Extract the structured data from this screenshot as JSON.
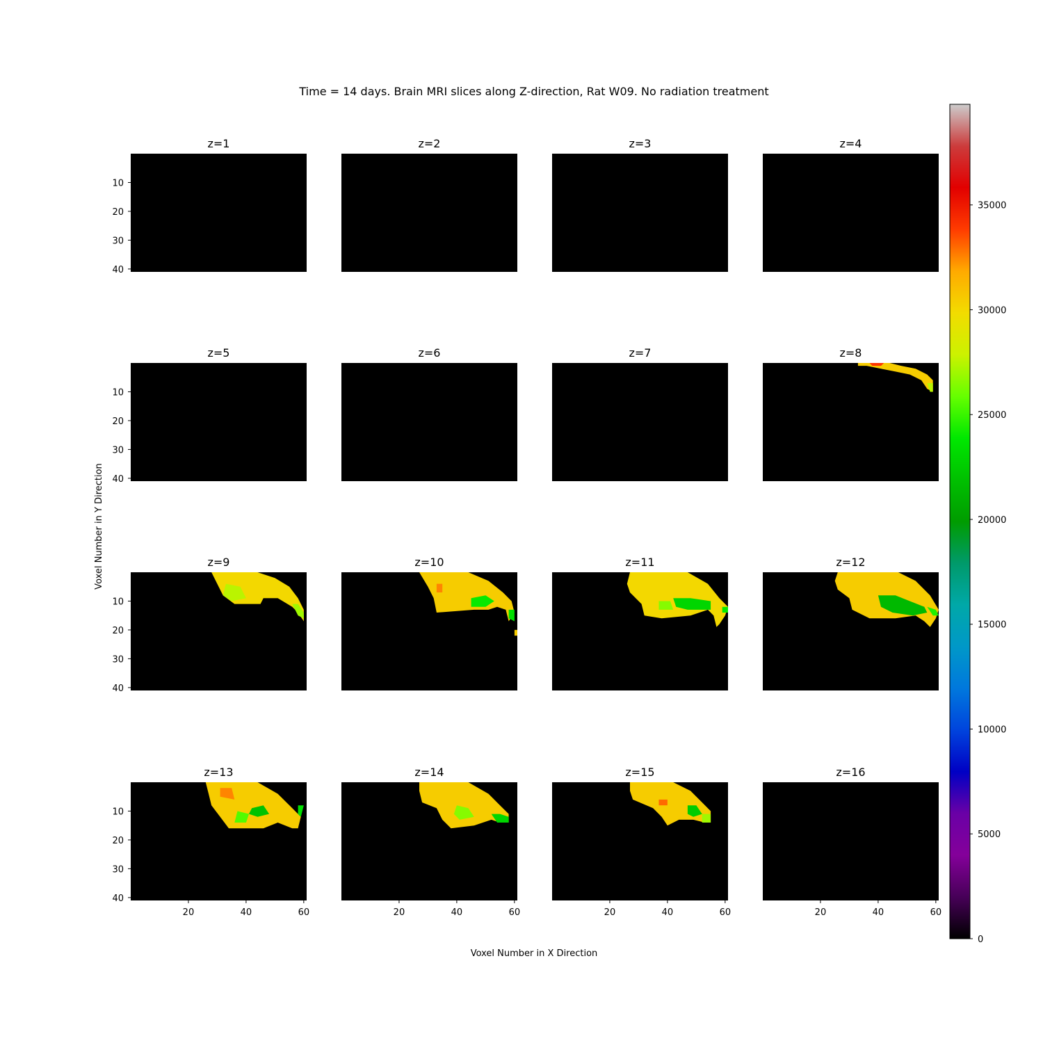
{
  "chart_data": {
    "type": "heatmap",
    "title": "Time = 14 days. Brain MRI slices along Z-direction, Rat W09. No radiation treatment",
    "xlabel": "Voxel Number in X Direction",
    "ylabel": "Voxel Number in Y Direction",
    "grid": false,
    "xlim": [
      0,
      61
    ],
    "ylim": [
      41,
      0
    ],
    "x_ticks": [
      20,
      40,
      60
    ],
    "y_ticks": [
      10,
      20,
      30,
      40
    ],
    "colormap": "nipy_spectral",
    "colorbar": {
      "range": [
        0,
        39800
      ],
      "ticks": [
        0,
        5000,
        10000,
        15000,
        20000,
        25000,
        30000,
        35000
      ]
    },
    "panels": [
      {
        "title": "z=1",
        "regions": []
      },
      {
        "title": "z=2",
        "regions": []
      },
      {
        "title": "z=3",
        "regions": []
      },
      {
        "title": "z=4",
        "regions": []
      },
      {
        "title": "z=5",
        "regions": []
      },
      {
        "title": "z=6",
        "regions": []
      },
      {
        "title": "z=7",
        "regions": []
      },
      {
        "title": "z=8",
        "regions": [
          {
            "value": 30500,
            "points": [
              [
                33,
                0
              ],
              [
                44,
                0
              ],
              [
                48,
                1
              ],
              [
                53,
                2
              ],
              [
                57,
                4
              ],
              [
                59,
                6
              ],
              [
                59,
                10
              ],
              [
                57,
                9
              ],
              [
                55,
                6
              ],
              [
                51,
                4
              ],
              [
                46,
                3
              ],
              [
                41,
                2
              ],
              [
                36,
                1
              ],
              [
                33,
                1
              ]
            ]
          },
          {
            "value": 34000,
            "points": [
              [
                37,
                0
              ],
              [
                42,
                0
              ],
              [
                41,
                1
              ],
              [
                38,
                1
              ]
            ]
          },
          {
            "value": 27500,
            "points": [
              [
                57,
                7
              ],
              [
                59,
                7
              ],
              [
                59,
                10
              ],
              [
                58,
                10
              ]
            ]
          }
        ]
      },
      {
        "title": "z=9",
        "regions": [
          {
            "value": 30000,
            "points": [
              [
                28,
                0
              ],
              [
                44,
                0
              ],
              [
                50,
                2
              ],
              [
                55,
                5
              ],
              [
                58,
                9
              ],
              [
                60,
                13
              ],
              [
                60,
                17
              ],
              [
                58,
                14
              ],
              [
                56,
                12
              ],
              [
                51,
                9
              ],
              [
                46,
                9
              ],
              [
                45,
                11
              ],
              [
                36,
                11
              ],
              [
                32,
                8
              ],
              [
                30,
                4
              ]
            ]
          },
          {
            "value": 27500,
            "points": [
              [
                33,
                4
              ],
              [
                38,
                5
              ],
              [
                40,
                9
              ],
              [
                35,
                10
              ],
              [
                32,
                8
              ]
            ]
          },
          {
            "value": 27000,
            "points": [
              [
                56,
                11
              ],
              [
                58,
                11
              ],
              [
                60,
                14
              ],
              [
                60,
                16
              ],
              [
                58,
                15
              ]
            ]
          }
        ]
      },
      {
        "title": "z=10",
        "regions": [
          {
            "value": 30500,
            "points": [
              [
                27,
                0
              ],
              [
                44,
                0
              ],
              [
                51,
                3
              ],
              [
                56,
                7
              ],
              [
                59,
                10
              ],
              [
                60,
                14
              ],
              [
                58,
                17
              ],
              [
                57,
                13
              ],
              [
                54,
                12
              ],
              [
                51,
                13
              ],
              [
                46,
                13
              ],
              [
                33,
                14
              ],
              [
                32,
                9
              ],
              [
                30,
                5
              ]
            ]
          },
          {
            "value": 32500,
            "points": [
              [
                33,
                4
              ],
              [
                35,
                4
              ],
              [
                35,
                7
              ],
              [
                33,
                7
              ]
            ]
          },
          {
            "value": 24000,
            "points": [
              [
                45,
                9
              ],
              [
                50,
                8
              ],
              [
                53,
                10
              ],
              [
                50,
                12
              ],
              [
                45,
                12
              ]
            ]
          },
          {
            "value": 23500,
            "points": [
              [
                58,
                13
              ],
              [
                60,
                13
              ],
              [
                60,
                17
              ],
              [
                58,
                16
              ]
            ]
          },
          {
            "value": 30500,
            "points": [
              [
                60,
                20
              ],
              [
                61,
                20
              ],
              [
                61,
                22
              ],
              [
                60,
                22
              ]
            ]
          }
        ]
      },
      {
        "title": "z=11",
        "regions": [
          {
            "value": 30000,
            "points": [
              [
                27,
                0
              ],
              [
                47,
                0
              ],
              [
                54,
                4
              ],
              [
                58,
                9
              ],
              [
                61,
                12
              ],
              [
                60,
                15
              ],
              [
                58,
                18
              ],
              [
                57,
                19
              ],
              [
                56,
                15
              ],
              [
                54,
                13
              ],
              [
                48,
                15
              ],
              [
                38,
                16
              ],
              [
                32,
                15
              ],
              [
                31,
                11
              ],
              [
                27,
                7
              ],
              [
                26,
                4
              ]
            ]
          },
          {
            "value": 23000,
            "points": [
              [
                42,
                9
              ],
              [
                48,
                9
              ],
              [
                55,
                10
              ],
              [
                55,
                13
              ],
              [
                47,
                13
              ],
              [
                43,
                12
              ]
            ]
          },
          {
            "value": 26500,
            "points": [
              [
                37,
                10
              ],
              [
                41,
                10
              ],
              [
                42,
                13
              ],
              [
                37,
                13
              ]
            ]
          },
          {
            "value": 24000,
            "points": [
              [
                59,
                12
              ],
              [
                61,
                12
              ],
              [
                61,
                14
              ],
              [
                59,
                14
              ]
            ]
          }
        ]
      },
      {
        "title": "z=12",
        "regions": [
          {
            "value": 30500,
            "points": [
              [
                26,
                0
              ],
              [
                47,
                0
              ],
              [
                53,
                3
              ],
              [
                58,
                8
              ],
              [
                61,
                13
              ],
              [
                60,
                16
              ],
              [
                58,
                19
              ],
              [
                56,
                17
              ],
              [
                53,
                15
              ],
              [
                46,
                16
              ],
              [
                37,
                16
              ],
              [
                31,
                13
              ],
              [
                30,
                9
              ],
              [
                26,
                6
              ],
              [
                25,
                3
              ]
            ]
          },
          {
            "value": 21500,
            "points": [
              [
                40,
                8
              ],
              [
                46,
                8
              ],
              [
                51,
                10
              ],
              [
                56,
                12
              ],
              [
                57,
                14
              ],
              [
                52,
                15
              ],
              [
                45,
                14
              ],
              [
                41,
                12
              ]
            ]
          },
          {
            "value": 24500,
            "points": [
              [
                57,
                12
              ],
              [
                60,
                13
              ],
              [
                61,
                15
              ],
              [
                59,
                15
              ]
            ]
          }
        ]
      },
      {
        "title": "z=13",
        "regions": [
          {
            "value": 30500,
            "points": [
              [
                26,
                0
              ],
              [
                44,
                0
              ],
              [
                51,
                4
              ],
              [
                56,
                9
              ],
              [
                59,
                12
              ],
              [
                58,
                16
              ],
              [
                56,
                16
              ],
              [
                51,
                14
              ],
              [
                46,
                16
              ],
              [
                34,
                16
              ],
              [
                31,
                12
              ],
              [
                28,
                8
              ],
              [
                27,
                4
              ]
            ]
          },
          {
            "value": 32500,
            "points": [
              [
                31,
                2
              ],
              [
                35,
                2
              ],
              [
                36,
                6
              ],
              [
                31,
                5
              ]
            ]
          },
          {
            "value": 22000,
            "points": [
              [
                42,
                9
              ],
              [
                46,
                8
              ],
              [
                48,
                11
              ],
              [
                44,
                12
              ],
              [
                41,
                11
              ]
            ]
          },
          {
            "value": 25500,
            "points": [
              [
                37,
                10
              ],
              [
                41,
                11
              ],
              [
                40,
                14
              ],
              [
                36,
                14
              ]
            ]
          },
          {
            "value": 23500,
            "points": [
              [
                58,
                8
              ],
              [
                60,
                8
              ],
              [
                59,
                12
              ],
              [
                58,
                11
              ]
            ]
          }
        ]
      },
      {
        "title": "z=14",
        "regions": [
          {
            "value": 30500,
            "points": [
              [
                27,
                0
              ],
              [
                44,
                0
              ],
              [
                51,
                4
              ],
              [
                55,
                8
              ],
              [
                58,
                11
              ],
              [
                58,
                14
              ],
              [
                55,
                14
              ],
              [
                52,
                13
              ],
              [
                46,
                15
              ],
              [
                38,
                16
              ],
              [
                35,
                13
              ],
              [
                33,
                9
              ],
              [
                28,
                7
              ],
              [
                27,
                3
              ]
            ]
          },
          {
            "value": 26500,
            "points": [
              [
                40,
                8
              ],
              [
                44,
                9
              ],
              [
                46,
                12
              ],
              [
                41,
                13
              ],
              [
                39,
                11
              ]
            ]
          },
          {
            "value": 23000,
            "points": [
              [
                52,
                11
              ],
              [
                55,
                11
              ],
              [
                58,
                12
              ],
              [
                58,
                14
              ],
              [
                54,
                14
              ]
            ]
          }
        ]
      },
      {
        "title": "z=15",
        "regions": [
          {
            "value": 30500,
            "points": [
              [
                27,
                0
              ],
              [
                42,
                0
              ],
              [
                48,
                3
              ],
              [
                52,
                7
              ],
              [
                55,
                10
              ],
              [
                55,
                14
              ],
              [
                53,
                14
              ],
              [
                49,
                13
              ],
              [
                44,
                13
              ],
              [
                40,
                15
              ],
              [
                38,
                12
              ],
              [
                35,
                9
              ],
              [
                28,
                6
              ],
              [
                27,
                3
              ]
            ]
          },
          {
            "value": 33000,
            "points": [
              [
                37,
                6
              ],
              [
                40,
                6
              ],
              [
                40,
                8
              ],
              [
                37,
                8
              ]
            ]
          },
          {
            "value": 22500,
            "points": [
              [
                47,
                8
              ],
              [
                50,
                8
              ],
              [
                52,
                11
              ],
              [
                49,
                12
              ],
              [
                47,
                11
              ]
            ]
          },
          {
            "value": 27000,
            "points": [
              [
                52,
                11
              ],
              [
                55,
                11
              ],
              [
                55,
                14
              ],
              [
                52,
                14
              ]
            ]
          }
        ]
      },
      {
        "title": "z=16",
        "regions": []
      }
    ]
  }
}
